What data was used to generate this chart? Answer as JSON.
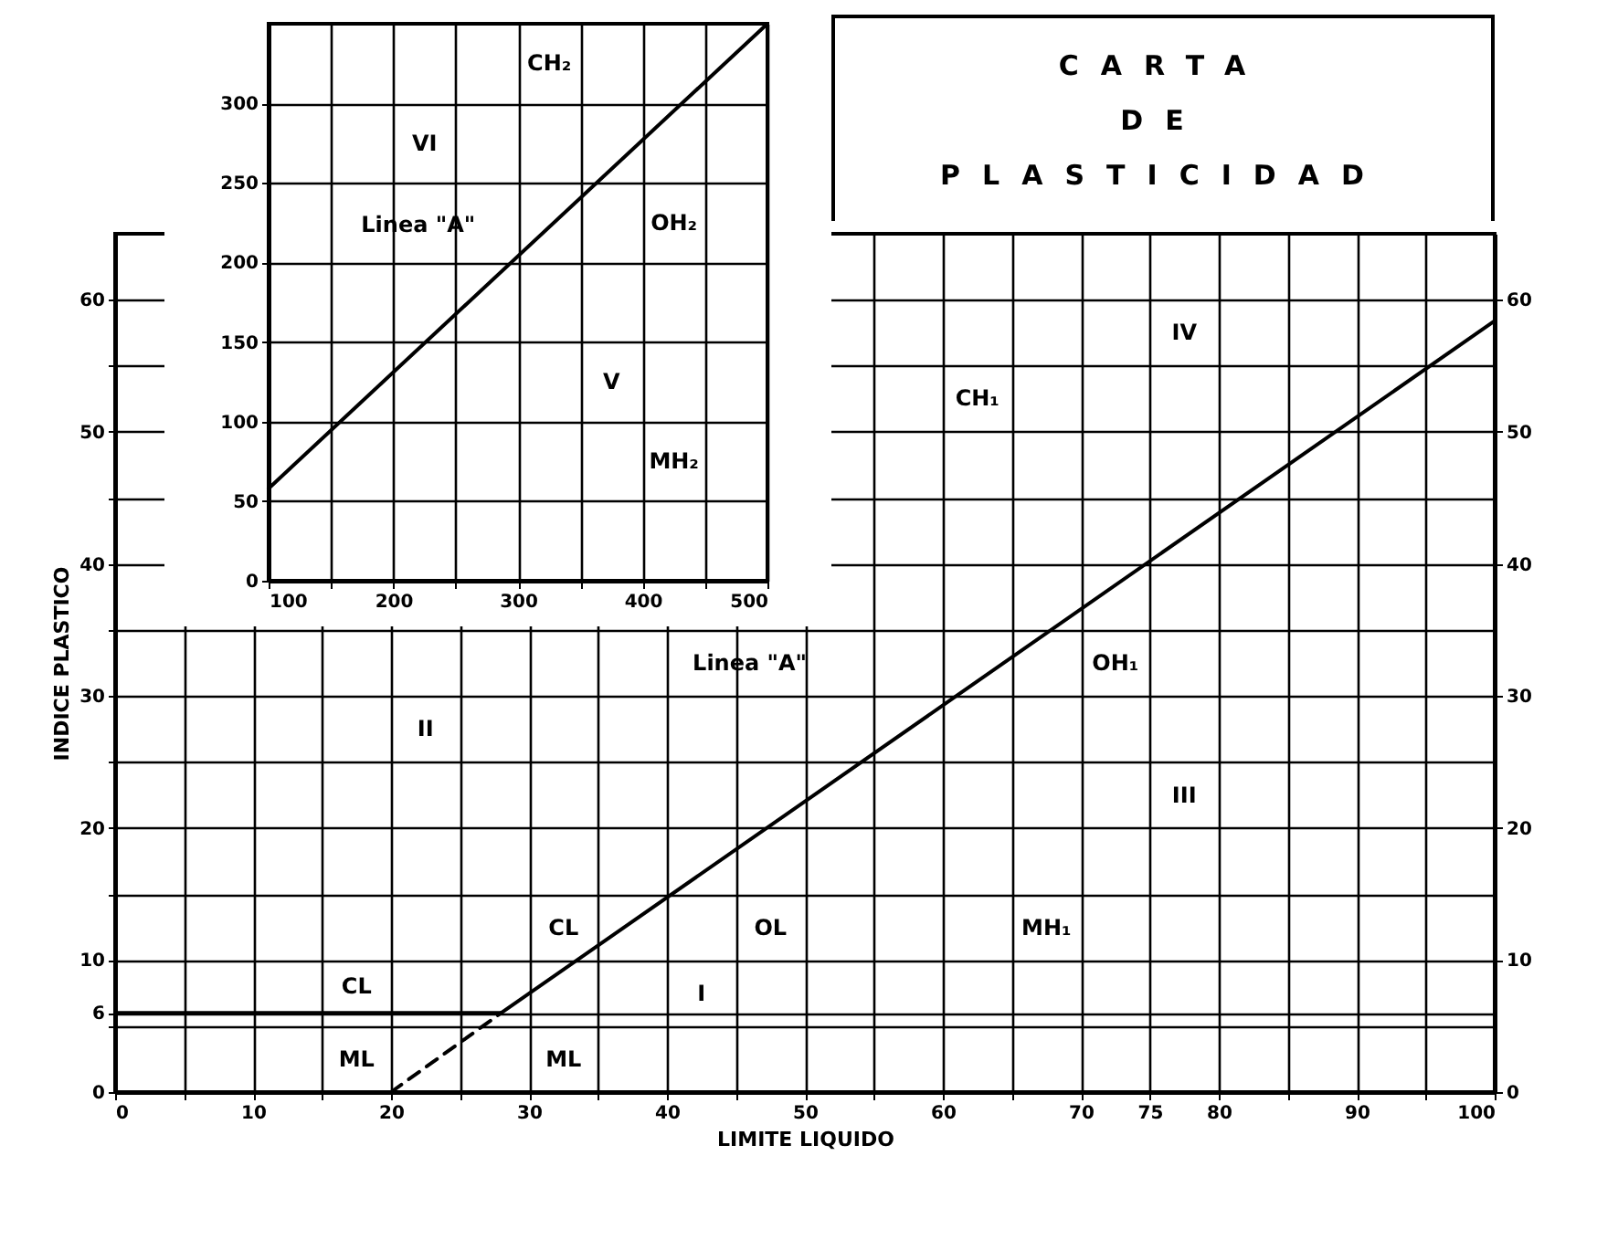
{
  "chart_data": [
    {
      "type": "line",
      "grid": true,
      "xlim": [
        100,
        500
      ],
      "ylim": [
        0,
        350
      ],
      "xticks": [
        100,
        {
          "value": 150,
          "label": null
        },
        200,
        {
          "value": 250,
          "label": null
        },
        300,
        {
          "value": 350,
          "label": null
        },
        400,
        {
          "value": 450,
          "label": null
        },
        500
      ],
      "yticks": [
        0,
        50,
        100,
        150,
        200,
        250,
        300
      ],
      "series": [
        {
          "color": "#000000",
          "x": [
            100,
            500
          ],
          "values": [
            58,
            350
          ],
          "line_style": "solid"
        }
      ],
      "annotations": [
        "VI",
        "V",
        "CH₂",
        "OH₂",
        "MH₂",
        "Linea \"A\""
      ]
    },
    {
      "type": "line",
      "title": "CARTA DE PLASTICIDAD",
      "xlabel": "LIMITE LIQUIDO",
      "ylabel": "INDICE PLASTICO",
      "grid": true,
      "xlim": [
        0,
        100
      ],
      "ylim": [
        0,
        65
      ],
      "y2lim": [
        0,
        65
      ],
      "xticks": [
        0,
        {
          "value": 5,
          "label": null
        },
        10,
        {
          "value": 15,
          "label": null
        },
        20,
        {
          "value": 25,
          "label": null
        },
        30,
        {
          "value": 35,
          "label": null
        },
        40,
        {
          "value": 45,
          "label": null
        },
        50,
        {
          "value": 55,
          "label": null
        },
        60,
        {
          "value": 65,
          "label": null
        },
        70,
        75,
        80,
        {
          "value": 85,
          "label": null
        },
        90,
        {
          "value": 95,
          "label": null
        },
        100
      ],
      "yticks": [
        0,
        {
          "value": 5,
          "label": null
        },
        6,
        10,
        {
          "value": 15,
          "label": null
        },
        20,
        {
          "value": 25,
          "label": null
        },
        30,
        {
          "value": 35,
          "label": null
        },
        40,
        {
          "value": 45,
          "label": null
        },
        50,
        {
          "value": 55,
          "label": null
        },
        60
      ],
      "y2ticks": [
        0,
        10,
        20,
        30,
        40,
        50,
        60
      ],
      "series": [
        {
          "color": "#000000",
          "x": [
            0,
            28
          ],
          "values": [
            6,
            6
          ],
          "line_style": "solid"
        },
        {
          "color": "#000000",
          "x": [
            28,
            100
          ],
          "values": [
            6,
            58.4
          ],
          "line_style": "solid"
        },
        {
          "color": "#000000",
          "x": [
            20,
            28
          ],
          "values": [
            0,
            6
          ],
          "line_style": "dashed"
        }
      ],
      "annotations": [
        "I",
        "II",
        "III",
        "IV",
        "CL",
        "ML",
        "CL",
        "ML",
        "OL",
        "MH₁",
        "CH₁",
        "OH₁",
        "Linea \"A\""
      ]
    }
  ]
}
